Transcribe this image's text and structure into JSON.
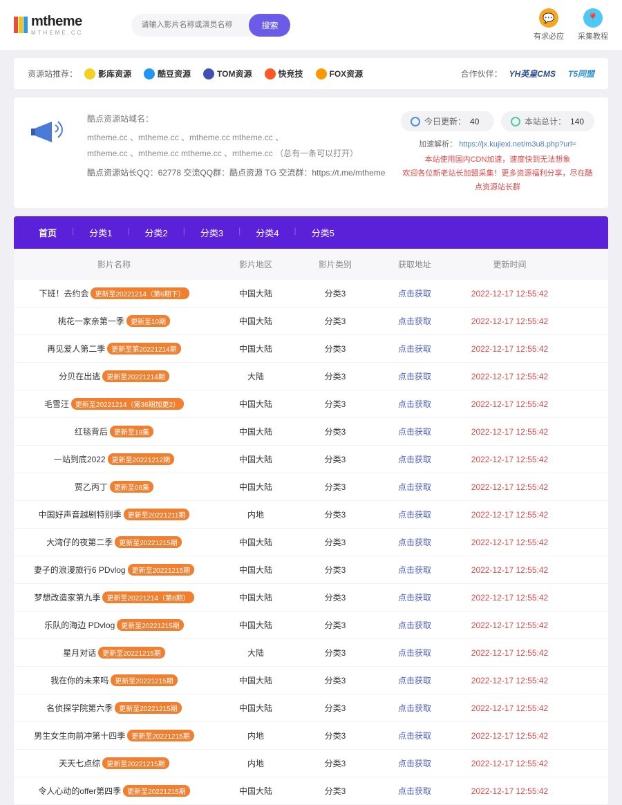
{
  "colors": {
    "primary": "#5b21d9",
    "accent": "#6b5ce7",
    "badge": "#f08030",
    "link": "#4a5bc9",
    "time": "#e84545",
    "logo_bars": [
      "#e74c3c",
      "#f1c40f",
      "#3498db"
    ]
  },
  "logo": {
    "main": "mtheme",
    "sub": "MTHEME.CC"
  },
  "search": {
    "placeholder": "请输入影片名称或演员名称",
    "button": "搜索"
  },
  "header_icons": [
    {
      "text": "有求必应",
      "color": "#f5a623",
      "glyph": "💬"
    },
    {
      "text": "采集教程",
      "color": "#4ec9f5",
      "glyph": "📍"
    }
  ],
  "partners": {
    "label": "资源站推荐：",
    "items": [
      {
        "name": "影库资源",
        "icon_bg": "#f5d020"
      },
      {
        "name": "酷豆资源",
        "icon_bg": "#2196f3"
      },
      {
        "name": "TOM资源",
        "icon_bg": "#3f51b5",
        "prefix": "M"
      },
      {
        "name": "快竞技",
        "icon_bg": "#ff5722"
      },
      {
        "name": "FOX资源",
        "icon_bg": "#ff9800"
      }
    ],
    "right_label": "合作伙伴：",
    "right_items": [
      "YH英皇CMS",
      "T5同盟"
    ]
  },
  "info_card": {
    "title": "酷点资源站域名：",
    "domains_line1": "mtheme.cc 、mtheme.cc 、mtheme.cc mtheme.cc 、",
    "domains_line2": "mtheme.cc 、mtheme.cc mtheme.cc 、mtheme.cc （总有一条可以打开）",
    "qq_line": "酷点资源站长QQ：62778 交流QQ群：酷点资源 TG 交流群：https://t.me/mtheme",
    "stats": [
      {
        "label": "今日更新：",
        "value": "40",
        "icon_color": "#4a90e2"
      },
      {
        "label": "本站总计：",
        "value": "140",
        "icon_color": "#4ec9a5"
      }
    ],
    "parse_label": "加速解析：",
    "parse_url": "https://jx.kujiexi.net/m3u8.php?url=",
    "red_line1": "本站使用国内CDN加速，速度快到无法想象",
    "red_line2": "欢迎各位新老站长加盟采集！更多资源福利分享，尽在酷点资源站长群"
  },
  "nav": [
    "首页",
    "分类1",
    "分类2",
    "分类3",
    "分类4",
    "分类5"
  ],
  "table": {
    "headers": {
      "name": "影片名称",
      "region": "影片地区",
      "category": "影片类别",
      "link": "获取地址",
      "time": "更新时间"
    },
    "link_text": "点击获取",
    "rows": [
      {
        "name": "下班！去约会",
        "badge": "更新至20221214（第6期下）",
        "region": "中国大陆",
        "cat": "分类3",
        "time": "2022-12-17 12:55:42"
      },
      {
        "name": "桃花一家亲第一季",
        "badge": "更新至10期",
        "region": "中国大陆",
        "cat": "分类3",
        "time": "2022-12-17 12:55:42"
      },
      {
        "name": "再见爱人第二季",
        "badge": "更新至第20221214期",
        "region": "中国大陆",
        "cat": "分类3",
        "time": "2022-12-17 12:55:42"
      },
      {
        "name": "分贝在出逃",
        "badge": "更新至20221214期",
        "region": "大陆",
        "cat": "分类3",
        "time": "2022-12-17 12:55:42"
      },
      {
        "name": "毛雪汪",
        "badge": "更新至20221214（第36期加更2）",
        "region": "中国大陆",
        "cat": "分类3",
        "time": "2022-12-17 12:55:42"
      },
      {
        "name": "红毯背后",
        "badge": "更新至19集",
        "region": "中国大陆",
        "cat": "分类3",
        "time": "2022-12-17 12:55:42"
      },
      {
        "name": "一站到底2022",
        "badge": "更新至20221212期",
        "region": "中国大陆",
        "cat": "分类3",
        "time": "2022-12-17 12:55:42"
      },
      {
        "name": "贾乙丙丁",
        "badge": "更新至06集",
        "region": "中国大陆",
        "cat": "分类3",
        "time": "2022-12-17 12:55:42"
      },
      {
        "name": "中国好声音越剧特别季",
        "badge": "更新至20221211期",
        "region": "内地",
        "cat": "分类3",
        "time": "2022-12-17 12:55:42"
      },
      {
        "name": "大湾仔的夜第二季",
        "badge": "更新至20221215期",
        "region": "中国大陆",
        "cat": "分类3",
        "time": "2022-12-17 12:55:42"
      },
      {
        "name": "妻子的浪漫旅行6 PDvlog",
        "badge": "更新至20221215期",
        "region": "中国大陆",
        "cat": "分类3",
        "time": "2022-12-17 12:55:42"
      },
      {
        "name": "梦想改造家第九季",
        "badge": "更新至20221214（第8期）",
        "region": "中国大陆",
        "cat": "分类3",
        "time": "2022-12-17 12:55:42"
      },
      {
        "name": "乐队的海边 PDvlog",
        "badge": "更新至20221215期",
        "region": "中国大陆",
        "cat": "分类3",
        "time": "2022-12-17 12:55:42"
      },
      {
        "name": "星月对话",
        "badge": "更新至20221215期",
        "region": "大陆",
        "cat": "分类3",
        "time": "2022-12-17 12:55:42"
      },
      {
        "name": "我在你的未来吗",
        "badge": "更新至20221215期",
        "region": "中国大陆",
        "cat": "分类3",
        "time": "2022-12-17 12:55:42"
      },
      {
        "name": "名侦探学院第六季",
        "badge": "更新至20221215期",
        "region": "中国大陆",
        "cat": "分类3",
        "time": "2022-12-17 12:55:42"
      },
      {
        "name": "男生女生向前冲第十四季",
        "badge": "更新至20221215期",
        "region": "内地",
        "cat": "分类3",
        "time": "2022-12-17 12:55:42"
      },
      {
        "name": "天天七点综",
        "badge": "更新至20221215期",
        "region": "内地",
        "cat": "分类3",
        "time": "2022-12-17 12:55:42"
      },
      {
        "name": "令人心动的offer第四季",
        "badge": "更新至20221215期",
        "region": "中国大陆",
        "cat": "分类3",
        "time": "2022-12-17 12:55:42"
      }
    ]
  }
}
